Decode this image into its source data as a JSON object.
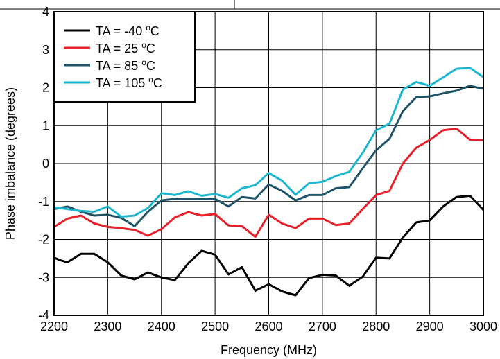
{
  "chart_data": {
    "type": "line",
    "title": "",
    "xlabel": "Frequency (MHz)",
    "ylabel": "Phase imbalance (degrees)",
    "xlim": [
      2200,
      3000
    ],
    "ylim": [
      -4,
      4
    ],
    "xticks": [
      "2200",
      "2300",
      "2400",
      "2500",
      "2600",
      "2700",
      "2800",
      "2900",
      "3000"
    ],
    "yticks": [
      "4",
      "3",
      "2",
      "1",
      "0",
      "-1",
      "-2",
      "-3",
      "-4"
    ],
    "grid": true,
    "legend_position": "top-left",
    "series": [
      {
        "name": "TA = -40 °C",
        "legend_main": "TA = -40 ",
        "legend_sup": "o",
        "legend_unit": "C",
        "color": "#000000",
        "x": [
          2200,
          2212,
          2225,
          2250,
          2275,
          2300,
          2325,
          2350,
          2375,
          2400,
          2425,
          2450,
          2475,
          2500,
          2525,
          2550,
          2575,
          2600,
          2625,
          2650,
          2675,
          2700,
          2725,
          2750,
          2775,
          2800,
          2825,
          2850,
          2875,
          2900,
          2925,
          2950,
          2975,
          3000
        ],
        "y": [
          -2.48,
          -2.55,
          -2.6,
          -2.38,
          -2.38,
          -2.6,
          -2.95,
          -3.05,
          -2.87,
          -3.0,
          -3.07,
          -2.63,
          -2.3,
          -2.4,
          -2.92,
          -2.73,
          -3.35,
          -3.18,
          -3.37,
          -3.47,
          -3.02,
          -2.93,
          -2.95,
          -3.22,
          -2.98,
          -2.48,
          -2.5,
          -1.95,
          -1.55,
          -1.5,
          -1.13,
          -0.88,
          -0.85,
          -1.22
        ]
      },
      {
        "name": "TA = 25 °C",
        "legend_main": "TA = 25 ",
        "legend_sup": "o",
        "legend_unit": "C",
        "color": "#e8202a",
        "x": [
          2200,
          2225,
          2250,
          2275,
          2300,
          2325,
          2350,
          2375,
          2400,
          2425,
          2450,
          2475,
          2500,
          2525,
          2550,
          2575,
          2600,
          2625,
          2650,
          2675,
          2700,
          2725,
          2750,
          2775,
          2800,
          2825,
          2850,
          2875,
          2900,
          2925,
          2950,
          2975,
          3000
        ],
        "y": [
          -1.67,
          -1.45,
          -1.37,
          -1.58,
          -1.67,
          -1.7,
          -1.75,
          -1.9,
          -1.73,
          -1.42,
          -1.28,
          -1.37,
          -1.33,
          -1.63,
          -1.65,
          -1.93,
          -1.35,
          -1.58,
          -1.7,
          -1.45,
          -1.45,
          -1.62,
          -1.58,
          -1.2,
          -0.83,
          -0.72,
          0.0,
          0.42,
          0.62,
          0.88,
          0.92,
          0.63,
          0.62
        ]
      },
      {
        "name": "TA = 85 °C",
        "legend_main": "TA = 85 ",
        "legend_sup": "o",
        "legend_unit": "C",
        "color": "#1f5468",
        "x": [
          2200,
          2225,
          2250,
          2275,
          2300,
          2325,
          2350,
          2375,
          2400,
          2425,
          2450,
          2475,
          2500,
          2525,
          2550,
          2575,
          2600,
          2625,
          2650,
          2675,
          2700,
          2725,
          2750,
          2775,
          2800,
          2825,
          2850,
          2875,
          2900,
          2925,
          2950,
          2975,
          3000
        ],
        "y": [
          -1.2,
          -1.13,
          -1.27,
          -1.37,
          -1.35,
          -1.43,
          -1.65,
          -1.27,
          -0.97,
          -0.93,
          -0.93,
          -0.93,
          -0.93,
          -1.13,
          -0.88,
          -0.92,
          -0.55,
          -0.72,
          -0.97,
          -0.83,
          -0.83,
          -0.65,
          -0.62,
          -0.13,
          0.35,
          0.65,
          1.38,
          1.75,
          1.77,
          1.85,
          1.92,
          2.05,
          1.97
        ]
      },
      {
        "name": "TA = 105 °C",
        "legend_main": "TA = 105 ",
        "legend_sup": "o",
        "legend_unit": "C",
        "color": "#1cb7cf",
        "x": [
          2200,
          2225,
          2250,
          2275,
          2300,
          2325,
          2350,
          2375,
          2400,
          2425,
          2450,
          2475,
          2500,
          2525,
          2550,
          2575,
          2600,
          2625,
          2650,
          2675,
          2700,
          2725,
          2750,
          2775,
          2800,
          2825,
          2850,
          2875,
          2900,
          2925,
          2950,
          2975,
          3000
        ],
        "y": [
          -1.15,
          -1.2,
          -1.25,
          -1.27,
          -1.13,
          -1.4,
          -1.37,
          -1.17,
          -0.78,
          -0.83,
          -0.73,
          -0.85,
          -0.8,
          -0.9,
          -0.65,
          -0.57,
          -0.25,
          -0.45,
          -0.82,
          -0.52,
          -0.48,
          -0.33,
          -0.22,
          0.28,
          0.88,
          1.05,
          1.95,
          2.15,
          2.05,
          2.27,
          2.5,
          2.52,
          2.28
        ]
      }
    ]
  }
}
